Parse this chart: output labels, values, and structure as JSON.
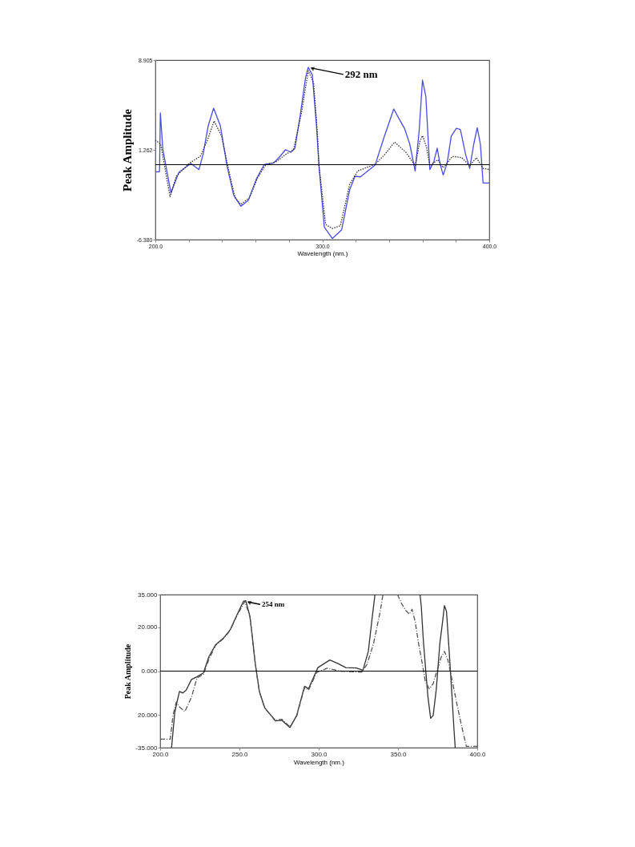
{
  "chart_data": [
    {
      "type": "line",
      "xlabel": "Wavelength (nm.)",
      "ylabel": "Peak Amplitude",
      "xlim": [
        200,
        400
      ],
      "ylim": [
        -6.38,
        8.905
      ],
      "xticks": [
        {
          "value": 200,
          "label": "200.0"
        },
        {
          "value": 220,
          "label": null
        },
        {
          "value": 240,
          "label": null
        },
        {
          "value": 260,
          "label": null
        },
        {
          "value": 280,
          "label": null
        },
        {
          "value": 300,
          "label": "300.0"
        },
        {
          "value": 320,
          "label": null
        },
        {
          "value": 340,
          "label": null
        },
        {
          "value": 360,
          "label": null
        },
        {
          "value": 380,
          "label": null
        },
        {
          "value": 400,
          "label": "400.0"
        }
      ],
      "yticks": [
        {
          "value": -6.38,
          "label": "-6.380"
        },
        1.262,
        8.905
      ],
      "grid": false,
      "marker": "none",
      "ref_lines": [
        {
          "axis": "y",
          "value": 0
        }
      ],
      "annotations": [
        {
          "text": "292 nm",
          "x": 292,
          "y": 8.3
        }
      ],
      "series": [
        {
          "color": "#4b4bea",
          "line_style": "solid",
          "x": [
            200,
            202.5,
            203,
            204.5,
            209.3,
            214.1,
            221.3,
            226.1,
            228.5,
            231.7,
            234.9,
            238.9,
            242.9,
            246.9,
            251.2,
            255.7,
            260.5,
            265.3,
            270.8,
            274,
            278,
            281.2,
            283.6,
            286.8,
            290,
            291.6,
            294,
            296.4,
            298,
            301.2,
            306,
            311.6,
            316.4,
            319.6,
            322.8,
            331.6,
            337.2,
            342.8,
            346,
            349.2,
            352.4,
            355.6,
            358,
            360,
            362,
            364.4,
            366.8,
            368.8,
            370.4,
            372.4,
            374.8,
            377.2,
            380.3,
            382.7,
            385.9,
            388.3,
            390.7,
            392.8,
            394.7,
            396.3,
            400
          ],
          "values": [
            -0.6,
            -0.6,
            4.4,
            1.3,
            -2.4,
            -0.65,
            0.1,
            -0.42,
            0.83,
            3.33,
            4.81,
            3.33,
            -0.08,
            -2.58,
            -3.54,
            -3.04,
            -1.22,
            0.03,
            0.14,
            0.6,
            1.28,
            1.06,
            1.4,
            4.24,
            7.43,
            8.29,
            7.65,
            3.56,
            -0.08,
            -5.31,
            -6.29,
            -5.54,
            -2.13,
            -0.99,
            -1.04,
            -0.04,
            2.42,
            4.74,
            3.9,
            3.1,
            1.74,
            -0.54,
            2.88,
            7.2,
            5.83,
            -0.42,
            0.26,
            1.4,
            0.15,
            -0.88,
            0.15,
            2.42,
            3.1,
            2.99,
            0.83,
            -0.31,
            1.74,
            3.15,
            1.74,
            -1.56,
            -1.56
          ]
        },
        {
          "color": "#333333",
          "line_style": "dotted",
          "x": [
            200,
            203.2,
            208.8,
            212.5,
            220.5,
            226.9,
            230.9,
            235.2,
            239.7,
            243.7,
            247.7,
            251.2,
            256.4,
            261.3,
            266,
            272.4,
            278,
            282.8,
            287.6,
            291.6,
            294.8,
            297.2,
            298,
            302,
            306,
            310.8,
            316.4,
            321.2,
            331.6,
            337.2,
            343.3,
            350,
            355.6,
            358.4,
            360,
            362.4,
            364.4,
            369.2,
            372.4,
            378,
            383.5,
            388.3,
            392.3,
            396.3,
            400
          ],
          "values": [
            2.1,
            1.74,
            -2.74,
            -0.99,
            0.14,
            0.71,
            1.97,
            3.72,
            2.42,
            -0.31,
            -2.81,
            -3.38,
            -2.81,
            -1.11,
            -0.04,
            0.26,
            0.87,
            1.28,
            4.47,
            7.99,
            6.97,
            2.42,
            -0.08,
            -5.09,
            -5.43,
            -5.2,
            -1.67,
            -0.54,
            0.03,
            0.83,
            1.92,
            1.06,
            -0.08,
            1.97,
            2.47,
            1.51,
            -0.08,
            0.42,
            -0.26,
            0.71,
            0.6,
            -0.08,
            0.6,
            -0.31,
            -0.42
          ]
        }
      ]
    },
    {
      "type": "line",
      "xlabel": "Wavelength (nm.)",
      "ylabel": "Peak Amplitude",
      "xlim": [
        200,
        400
      ],
      "ylim": [
        -35,
        35
      ],
      "xticks": [
        {
          "value": 200,
          "label": "200.0"
        },
        {
          "value": 250,
          "label": "250.0"
        },
        {
          "value": 300,
          "label": "300.0"
        },
        {
          "value": 350,
          "label": "350.0"
        },
        {
          "value": 400,
          "label": "400.0"
        }
      ],
      "yticks": [
        {
          "value": -35,
          "label": "-35.000"
        },
        {
          "value": -20,
          "label": "20.000"
        },
        {
          "value": 0,
          "label": "0.000"
        },
        {
          "value": 20,
          "label": "20.000"
        },
        {
          "value": 35,
          "label": "35.000"
        }
      ],
      "grid": false,
      "marker": "none",
      "ref_lines": [
        {
          "axis": "y",
          "value": 0
        }
      ],
      "annotations": [
        {
          "text": "254 nm",
          "x": 254,
          "y": 32
        }
      ],
      "series": [
        {
          "color": "#333333",
          "line_style": "solid",
          "x": [
            207.2,
            209.2,
            210.6,
            212.2,
            214.3,
            216.4,
            219.8,
            223.2,
            227.3,
            230.7,
            234.9,
            239.9,
            244.1,
            248.3,
            252.5,
            254,
            256.7,
            260.1,
            262.6,
            265.9,
            272.7,
            276.8,
            281.9,
            286.1,
            291.1,
            293.6,
            299.5,
            307,
            312,
            317.1,
            323.7,
            327.9,
            331.3,
            333.8,
            335.5,
            350,
            363.9,
            364.7,
            365.9,
            367.6,
            368.9,
            370.6,
            372.2,
            374.2,
            376.4,
            378.1,
            379.3,
            380.6,
            382.3,
            383.9,
            385.3,
            386.1
          ],
          "values": [
            -35,
            -19.1,
            -14.2,
            -9.3,
            -10,
            -8.7,
            -3.8,
            -2.6,
            -0.8,
            6.5,
            12,
            15.1,
            18.8,
            25.5,
            31.9,
            32.2,
            24.9,
            2.9,
            -9.3,
            -16.7,
            -22.8,
            -22.5,
            -25.8,
            -20.3,
            -6.9,
            -8.1,
            1.6,
            5.1,
            3.5,
            1.6,
            1.4,
            0.4,
            9,
            24.9,
            35,
            null,
            35,
            29.7,
            15.1,
            -0.6,
            -11.8,
            -21.6,
            -20.3,
            -8.1,
            12.6,
            22.4,
            30,
            27.3,
            9,
            -9.3,
            -26.4,
            -35
          ]
        },
        {
          "color": "#555555",
          "line_style": "dashed",
          "x": [
            200,
            206.4,
            208.1,
            210.1,
            212.6,
            215.6,
            219.8,
            223.2,
            227.3,
            230.7,
            234.9,
            239.9,
            244.1,
            248.3,
            253.5,
            256.7,
            260.1,
            262.6,
            265.9,
            272.7,
            276.8,
            281.9,
            286.1,
            291.1,
            293.6,
            298.7,
            305.4,
            313.7,
            327.1,
            330.4,
            334.6,
            338.8,
            340.5,
            345,
            349.7,
            352.2,
            354.7,
            357.2,
            358.9,
            360.9,
            363,
            365.2,
            367.2,
            369.7,
            372.2,
            374.7,
            377.3,
            379.3,
            381.4,
            383.9,
            387.3,
            389.8,
            393.1,
            400
          ],
          "values": [
            -31.1,
            -31.1,
            -20.3,
            -14.2,
            -16.7,
            -18.5,
            -11.8,
            -3.2,
            -1.4,
            5.3,
            11.7,
            14.8,
            18.5,
            25.2,
            31.9,
            24.5,
            2.6,
            -9.6,
            -16.9,
            -22.5,
            -22,
            -25.5,
            -20.6,
            -7.5,
            -8.7,
            -0.6,
            1.3,
            0,
            -0.5,
            3,
            12.6,
            27.3,
            35,
            null,
            35,
            31,
            27.9,
            26.1,
            28.3,
            22.4,
            12.6,
            4,
            -4.5,
            -8.1,
            -5.7,
            0.4,
            6.5,
            9,
            5.3,
            -3.2,
            -15.5,
            -24,
            -34.4,
            -34.4
          ]
        }
      ]
    }
  ]
}
